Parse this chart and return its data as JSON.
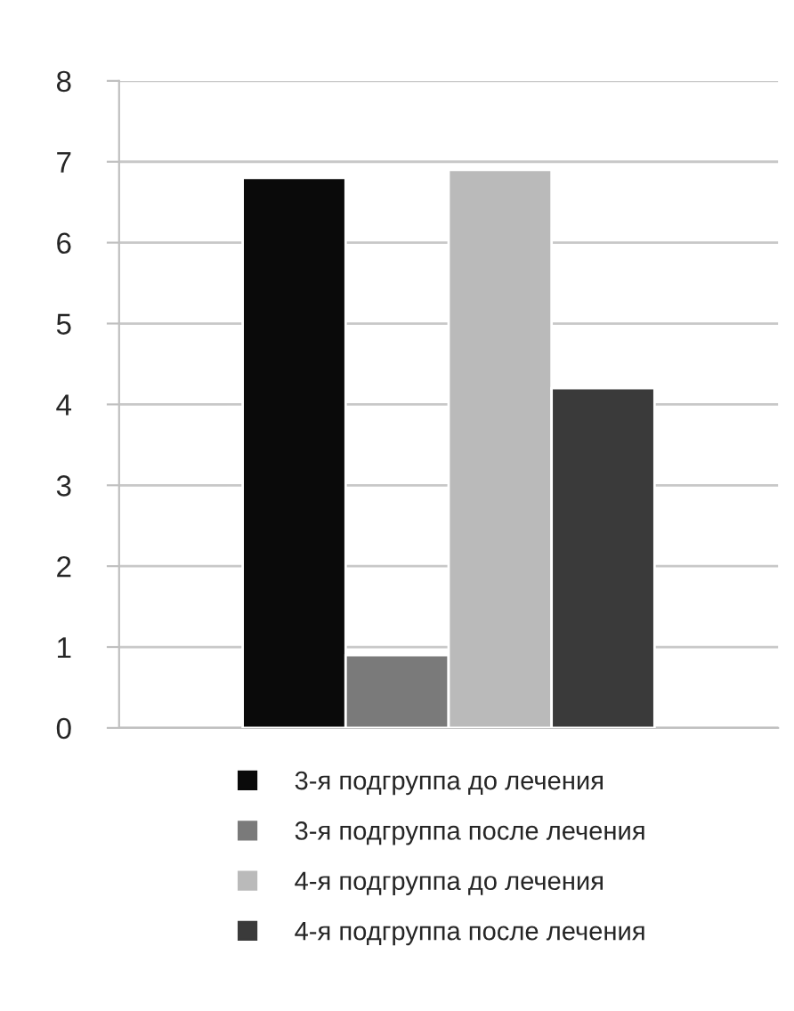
{
  "chart_data": {
    "type": "bar",
    "categories": [
      null
    ],
    "series": [
      {
        "name": "3-я подгруппа до лечения",
        "color": "#0a0a0a",
        "values": [
          6.8
        ]
      },
      {
        "name": "3-я подгруппа после лечения",
        "color": "#7a7a7a",
        "values": [
          0.9
        ]
      },
      {
        "name": "4-я подгруппа до лечения",
        "color": "#bababa",
        "values": [
          6.9
        ]
      },
      {
        "name": "4-я подгруппа после лечения",
        "color": "#3a3a3a",
        "values": [
          4.2
        ]
      }
    ],
    "ylim": [
      0,
      8
    ],
    "yticks": [
      0,
      1,
      2,
      3,
      4,
      5,
      6,
      7,
      8
    ],
    "grid": "y",
    "legend": "bottom"
  }
}
